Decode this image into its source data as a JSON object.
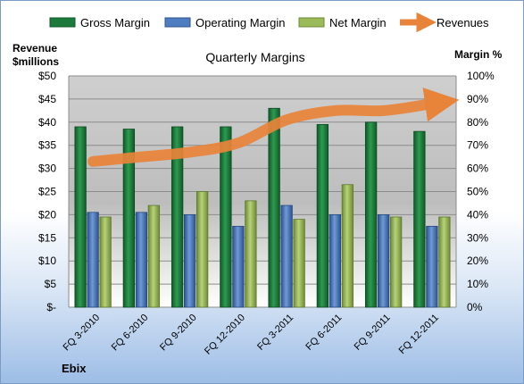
{
  "chart_data": {
    "type": "bar",
    "title": "Quarterly Margins",
    "categories": [
      "FQ 3-2010",
      "FQ 6-2010",
      "FQ 9-2010",
      "FQ 12-2010",
      "FQ 3-2011",
      "FQ 6-2011",
      "FQ 9-2011",
      "FQ 12-2011"
    ],
    "series": [
      {
        "name": "Gross Margin",
        "axis": "right",
        "color": "#1e7a3c",
        "values": [
          78,
          77,
          78,
          78,
          86,
          79,
          80,
          76
        ]
      },
      {
        "name": "Operating Margin",
        "axis": "right",
        "color": "#4f7ec0",
        "values": [
          41,
          41,
          40,
          35,
          44,
          40,
          40,
          35
        ]
      },
      {
        "name": "Net Margin",
        "axis": "right",
        "color": "#9bbb59",
        "values": [
          39,
          44,
          50,
          46,
          38,
          53,
          39,
          39
        ]
      },
      {
        "name": "Revenues",
        "axis": "left",
        "type": "line",
        "color": "#e8833a",
        "values": [
          31.5,
          32.5,
          33.5,
          35.5,
          40.5,
          42.5,
          42.5,
          44
        ]
      }
    ],
    "left_axis": {
      "label_line1": "Revenue",
      "label_line2": "$millions",
      "ylim": [
        0,
        50
      ],
      "ticks": [
        "$-",
        "$5",
        "$10",
        "$15",
        "$20",
        "$25",
        "$30",
        "$35",
        "$40",
        "$45",
        "$50"
      ]
    },
    "right_axis": {
      "label": "Margin %",
      "ylim": [
        0,
        100
      ],
      "ticks": [
        "0%",
        "10%",
        "20%",
        "30%",
        "40%",
        "50%",
        "60%",
        "70%",
        "80%",
        "90%",
        "100%"
      ]
    },
    "legend_position": "top",
    "grid": true,
    "company": "Ebix"
  }
}
